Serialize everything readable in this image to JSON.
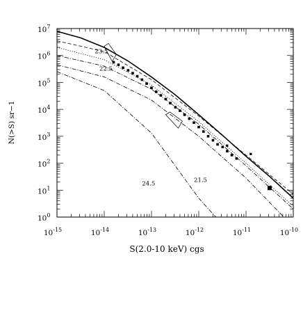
{
  "chart_data": {
    "type": "line",
    "title": "",
    "xlabel": "S(2.0-10 keV) cgs",
    "ylabel": "N(>S) sr−1",
    "x_scale": "log",
    "y_scale": "log",
    "xlim": [
      1e-15,
      1e-10
    ],
    "ylim": [
      1,
      10000000.0
    ],
    "grid": false,
    "x_tick_labels": [
      {
        "base": "10",
        "exp": "-15",
        "value": 1e-15
      },
      {
        "base": "10",
        "exp": "-14",
        "value": 1e-14
      },
      {
        "base": "10",
        "exp": "-13",
        "value": 1e-13
      },
      {
        "base": "10",
        "exp": "-12",
        "value": 1e-12
      },
      {
        "base": "10",
        "exp": "-11",
        "value": 1e-11
      },
      {
        "base": "10",
        "exp": "-10",
        "value": 1e-10
      }
    ],
    "y_tick_labels": [
      {
        "base": "10",
        "exp": "0",
        "value": 1
      },
      {
        "base": "10",
        "exp": "1",
        "value": 10
      },
      {
        "base": "10",
        "exp": "2",
        "value": 100
      },
      {
        "base": "10",
        "exp": "3",
        "value": 1000
      },
      {
        "base": "10",
        "exp": "4",
        "value": 10000
      },
      {
        "base": "10",
        "exp": "5",
        "value": 100000
      },
      {
        "base": "10",
        "exp": "6",
        "value": 1000000
      },
      {
        "base": "10",
        "exp": "7",
        "value": 10000000
      }
    ],
    "annotations": [
      {
        "text": "23.5",
        "x": 6.3e-15,
        "y": 1200000.0
      },
      {
        "text": "22.5",
        "x": 7.9e-15,
        "y": 270000.0
      },
      {
        "text": "24.5",
        "x": 6.3e-14,
        "y": 15
      },
      {
        "text": "21.5",
        "x": 7.9e-13,
        "y": 20
      }
    ],
    "series": [
      {
        "style": "solid-thick",
        "x": [
          1e-15,
          3.16e-15,
          1e-14,
          3.16e-14,
          1e-13,
          3.16e-13,
          1e-12,
          3.16e-12,
          1e-11,
          3.16e-11,
          1e-10
        ],
        "y": [
          7900000.0,
          4500000.0,
          2000000.0,
          630000.0,
          158000.0,
          35000.0,
          6300.0,
          1100.0,
          180,
          32,
          5
        ]
      },
      {
        "style": "dashed",
        "x": [
          1e-15,
          1e-14,
          1e-13,
          1e-12,
          1e-11,
          1e-10
        ],
        "y": [
          3500000.0,
          1400000.0,
          126000.0,
          5600.0,
          200,
          7
        ]
      },
      {
        "style": "dotted",
        "x": [
          1e-15,
          1e-14,
          1e-13,
          1e-12,
          1e-11,
          1e-10
        ],
        "y": [
          2000000.0,
          700000.0,
          80000.0,
          3500.0,
          100,
          2.5
        ]
      },
      {
        "style": "dash-dot",
        "x": [
          1e-15,
          1e-14,
          1e-13,
          1e-12,
          1e-11,
          1e-10
        ],
        "y": [
          1000000.0,
          400000.0,
          56000.0,
          2800.0,
          80,
          2
        ]
      },
      {
        "style": "dash-dot",
        "x": [
          1e-15,
          1e-14,
          1e-13,
          1e-12,
          1e-11,
          6.3e-11
        ],
        "y": [
          450000.0,
          160000.0,
          22000.0,
          1000.0,
          28,
          1
        ]
      },
      {
        "style": "dash-dot",
        "x": [
          1e-15,
          1e-14,
          1e-13,
          1e-12,
          2.3e-12
        ],
        "y": [
          250000.0,
          50000.0,
          1300.0,
          5,
          1
        ]
      }
    ],
    "data_points": {
      "x": [
        1.58e-14,
        2e-14,
        2.5e-14,
        3.2e-14,
        4e-14,
        5e-14,
        6.3e-14,
        7.9e-14,
        1e-13,
        1.26e-13,
        1.58e-13,
        2e-13,
        2.5e-13,
        3.2e-13,
        4e-13,
        5e-13,
        6.3e-13,
        7.9e-13,
        1e-12,
        1.26e-12,
        1.58e-12,
        2e-12,
        2.5e-12,
        3.2e-12,
        4e-12,
        5e-12,
        6.3e-12
      ],
      "y": [
        560000.0,
        450000.0,
        350000.0,
        280000.0,
        220000.0,
        170000.0,
        126000.0,
        90000.0,
        63000.0,
        45000.0,
        33000.0,
        24000.0,
        17000.0,
        12000.0,
        8900.0,
        6300.0,
        4500.0,
        3200.0,
        2200.0,
        1500.0,
        1000.0,
        710,
        500,
        400,
        280,
        200,
        150
      ]
    },
    "upper_points": {
      "x": [
        3.98e-12,
        1.26e-11
      ],
      "y": [
        450,
        220
      ]
    },
    "highlight_point": {
      "x": 3.16e-11,
      "y": 12
    },
    "error_boxes": [
      {
        "xlo": 1e-14,
        "xhi": 1.8e-14,
        "ylo": 600000.0,
        "yhi": 2200000.0
      },
      {
        "xlo": 2e-13,
        "xhi": 4.5e-13,
        "ylo": 2000.0,
        "yhi": 6300.0
      }
    ]
  }
}
